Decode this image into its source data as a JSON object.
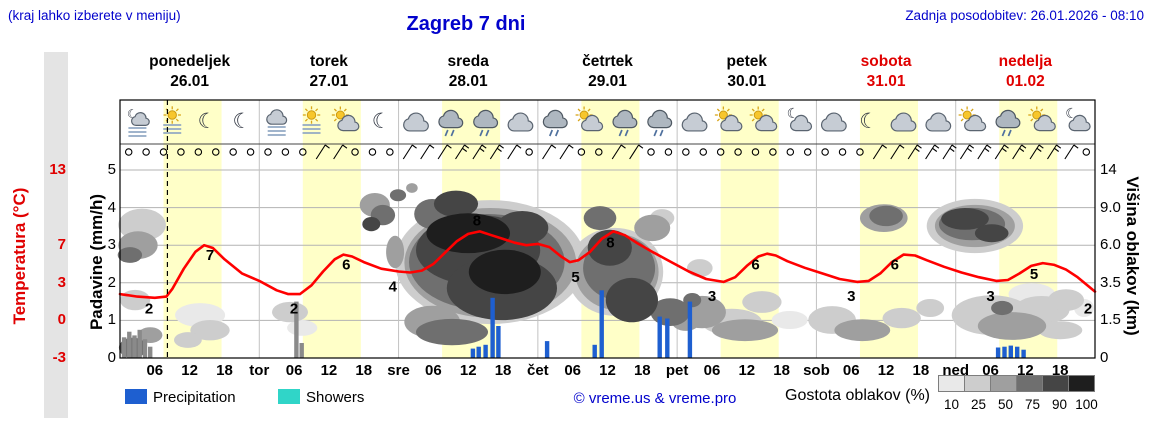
{
  "header": {
    "hint": "(kraj lahko izberete v meniju)",
    "title": "Zagreb 7 dni",
    "updated": "Zadnja posodobitev: 26.01.2026 - 08:10"
  },
  "days": [
    {
      "name": "ponedeljek",
      "date": "26.01",
      "weekend": false
    },
    {
      "name": "torek",
      "date": "27.01",
      "weekend": false
    },
    {
      "name": "sreda",
      "date": "28.01",
      "weekend": false
    },
    {
      "name": "četrtek",
      "date": "29.01",
      "weekend": false
    },
    {
      "name": "petek",
      "date": "30.01",
      "weekend": false
    },
    {
      "name": "sobota",
      "date": "31.01",
      "weekend": true
    },
    {
      "name": "nedelja",
      "date": "01.02",
      "weekend": true
    }
  ],
  "axes": {
    "temperature": {
      "title": "Temperatura (°C)",
      "ticks": [
        {
          "label": "13",
          "row": 0
        },
        {
          "label": "7",
          "row": 2
        },
        {
          "label": "3",
          "row": 3
        },
        {
          "label": "0",
          "row": 4
        },
        {
          "label": "-3",
          "row": 5
        }
      ]
    },
    "precipitation": {
      "title": "Padavine (mm/h)",
      "ticks": [
        {
          "label": "5",
          "row": 0
        },
        {
          "label": "4",
          "row": 1
        },
        {
          "label": "3",
          "row": 2
        },
        {
          "label": "2",
          "row": 3
        },
        {
          "label": "1",
          "row": 4
        },
        {
          "label": "0",
          "row": 5
        }
      ]
    },
    "cloud_height": {
      "title": "Višina oblakov (km)",
      "ticks": [
        {
          "label": "14",
          "row": 0
        },
        {
          "label": "9.0",
          "row": 1
        },
        {
          "label": "6.0",
          "row": 2
        },
        {
          "label": "3.5",
          "row": 3
        },
        {
          "label": "1.5",
          "row": 4
        },
        {
          "label": "0",
          "row": 5
        }
      ]
    },
    "x_ticks": [
      {
        "label": "06",
        "hour": 6
      },
      {
        "label": "12",
        "hour": 12
      },
      {
        "label": "18",
        "hour": 18
      },
      {
        "label": "tor",
        "hour": 24
      },
      {
        "label": "06",
        "hour": 30
      },
      {
        "label": "12",
        "hour": 36
      },
      {
        "label": "18",
        "hour": 42
      },
      {
        "label": "sre",
        "hour": 48
      },
      {
        "label": "06",
        "hour": 54
      },
      {
        "label": "12",
        "hour": 60
      },
      {
        "label": "18",
        "hour": 66
      },
      {
        "label": "čet",
        "hour": 72
      },
      {
        "label": "06",
        "hour": 78
      },
      {
        "label": "12",
        "hour": 84
      },
      {
        "label": "18",
        "hour": 90
      },
      {
        "label": "pet",
        "hour": 96
      },
      {
        "label": "06",
        "hour": 102
      },
      {
        "label": "12",
        "hour": 108
      },
      {
        "label": "18",
        "hour": 114
      },
      {
        "label": "sob",
        "hour": 120
      },
      {
        "label": "06",
        "hour": 126
      },
      {
        "label": "12",
        "hour": 132
      },
      {
        "label": "18",
        "hour": 138
      },
      {
        "label": "ned",
        "hour": 144
      },
      {
        "label": "06",
        "hour": 150
      },
      {
        "label": "12",
        "hour": 156
      },
      {
        "label": "18",
        "hour": 162
      }
    ]
  },
  "legend": {
    "precipitation": "Precipitation",
    "showers": "Showers",
    "credit": "© vreme.us & vreme.pro",
    "cloud_density_label": "Gostota oblakov (%)",
    "cloud_density_levels": [
      "10",
      "25",
      "50",
      "75",
      "90",
      "100"
    ]
  },
  "colors": {
    "link": "#0202cc",
    "temp_axis": "#e00000",
    "weekend": "#e00000",
    "curve": "#ff0000",
    "precip_bar": "#1e5fd0",
    "showers": "#30d5c8",
    "daylight": "#ffffc8",
    "past_bar": "#8a8a8a",
    "cloud_levels": {
      "10": "#e9e9e9",
      "25": "#cdcdcd",
      "50": "#9f9f9f",
      "75": "#6f6f6f",
      "90": "#454545",
      "100": "#1e1e1e"
    }
  },
  "chart_data": {
    "type": "line",
    "title": "Zagreb 7 dni",
    "x_axis": "hours from ponedeljek 00:00 (0-168)",
    "precipitation_axis_mm": [
      0,
      5
    ],
    "temperature_ticks_c": [
      13,
      7,
      3,
      0,
      -3
    ],
    "cloud_height_ticks_km": [
      "14",
      "9.0",
      "6.0",
      "3.5",
      "1.5",
      "0"
    ],
    "temp_scale_anchors": [
      [
        -3,
        5
      ],
      [
        0,
        4
      ],
      [
        3,
        3
      ],
      [
        7,
        2
      ],
      [
        13,
        0
      ]
    ],
    "current_time_hour": 8.17,
    "daylight_hours": {
      "start": 7.5,
      "end": 17.5
    },
    "temperature_c": {
      "hours": [
        0,
        3,
        6,
        8,
        9,
        11,
        13,
        14.5,
        16,
        18,
        21,
        24,
        27,
        29,
        31,
        33,
        35,
        37,
        38.5,
        40,
        42,
        45,
        48,
        50,
        52,
        54,
        56,
        58,
        60,
        62,
        64,
        66,
        68,
        70,
        72,
        74,
        76,
        77.5,
        79,
        81,
        83,
        85,
        87,
        89,
        92,
        95,
        98,
        101,
        104,
        106,
        108,
        110,
        111.5,
        113,
        115,
        118,
        121,
        124,
        127,
        129,
        131,
        133,
        135,
        137,
        139,
        142,
        145,
        148,
        151,
        153,
        155,
        157,
        159,
        161,
        163,
        165,
        168
      ],
      "values": [
        2.1,
        1.9,
        1.8,
        1.9,
        2.5,
        4.5,
        6.3,
        7.0,
        6.7,
        5.5,
        4.0,
        3.2,
        2.4,
        2.1,
        2.1,
        2.8,
        4.2,
        5.5,
        6.0,
        5.8,
        5.2,
        4.5,
        4.2,
        4.1,
        4.3,
        5.0,
        6.2,
        7.3,
        7.9,
        8.1,
        7.8,
        7.5,
        7.2,
        7.0,
        7.1,
        6.8,
        5.8,
        5.2,
        5.4,
        6.3,
        7.5,
        8.1,
        7.8,
        7.2,
        6.2,
        5.2,
        4.2,
        3.4,
        3.1,
        3.6,
        4.8,
        5.8,
        6.1,
        5.9,
        5.3,
        4.6,
        4.0,
        3.4,
        3.1,
        3.2,
        4.0,
        5.2,
        6.0,
        5.9,
        5.4,
        4.7,
        4.1,
        3.6,
        3.2,
        3.3,
        4.0,
        4.8,
        5.1,
        4.9,
        4.4,
        3.6,
        2.3
      ]
    },
    "temp_labels": [
      {
        "hour": 5,
        "value": "2",
        "pos": "min"
      },
      {
        "hour": 15.5,
        "value": "7",
        "pos": "max"
      },
      {
        "hour": 30,
        "value": "2",
        "pos": "min"
      },
      {
        "hour": 39,
        "value": "6",
        "pos": "max"
      },
      {
        "hour": 47,
        "value": "4",
        "pos": "min"
      },
      {
        "hour": 61.5,
        "value": "8",
        "pos": "top"
      },
      {
        "hour": 78.5,
        "value": "5",
        "pos": "min"
      },
      {
        "hour": 84.5,
        "value": "8",
        "pos": "max"
      },
      {
        "hour": 102,
        "value": "3",
        "pos": "min"
      },
      {
        "hour": 109.5,
        "value": "6",
        "pos": "max"
      },
      {
        "hour": 126,
        "value": "3",
        "pos": "min"
      },
      {
        "hour": 133.5,
        "value": "6",
        "pos": "max"
      },
      {
        "hour": 150,
        "value": "3",
        "pos": "min"
      },
      {
        "hour": 157.5,
        "value": "5",
        "pos": "max"
      },
      {
        "hour": 166.8,
        "value": "2",
        "pos": "min"
      }
    ],
    "precipitation_mm": [
      {
        "hour": 60.8,
        "mm": 0.25
      },
      {
        "hour": 61.8,
        "mm": 0.3
      },
      {
        "hour": 63,
        "mm": 0.35
      },
      {
        "hour": 64.2,
        "mm": 1.6
      },
      {
        "hour": 65.2,
        "mm": 0.85
      },
      {
        "hour": 73.6,
        "mm": 0.45
      },
      {
        "hour": 81.8,
        "mm": 0.35
      },
      {
        "hour": 83,
        "mm": 1.8
      },
      {
        "hour": 93,
        "mm": 1.1
      },
      {
        "hour": 94.3,
        "mm": 1.05
      },
      {
        "hour": 98.2,
        "mm": 1.5
      },
      {
        "hour": 151.3,
        "mm": 0.28
      },
      {
        "hour": 152.4,
        "mm": 0.3
      },
      {
        "hour": 153.5,
        "mm": 0.33
      },
      {
        "hour": 154.6,
        "mm": 0.3
      },
      {
        "hour": 155.7,
        "mm": 0.22
      }
    ],
    "past_precip_mm": [
      {
        "hour": 0.7,
        "mm": 0.55
      },
      {
        "hour": 1.6,
        "mm": 0.7
      },
      {
        "hour": 2.5,
        "mm": 0.6
      },
      {
        "hour": 3.4,
        "mm": 0.75
      },
      {
        "hour": 4.3,
        "mm": 0.5
      },
      {
        "hour": 5.2,
        "mm": 0.3
      },
      {
        "hour": 30.4,
        "mm": 1.5
      },
      {
        "hour": 31.3,
        "mm": 0.4
      }
    ],
    "clouds_format": "[center_hour, center_rows_above_bottom, radius_hours, radius_rows, density_pct]",
    "clouds": [
      [
        3.8,
        3.54,
        4.1,
        0.43,
        25
      ],
      [
        3.1,
        3.0,
        3.4,
        0.37,
        50
      ],
      [
        1.7,
        2.74,
        2.1,
        0.21,
        75
      ],
      [
        2.6,
        1.54,
        2.6,
        0.27,
        25
      ],
      [
        5.2,
        0.61,
        2.1,
        0.21,
        50
      ],
      [
        2.2,
        0.27,
        2.4,
        0.27,
        75
      ],
      [
        13.8,
        1.14,
        4.3,
        0.32,
        10
      ],
      [
        15.5,
        0.74,
        3.4,
        0.27,
        25
      ],
      [
        11.7,
        0.48,
        2.4,
        0.21,
        25
      ],
      [
        29.3,
        1.22,
        3.1,
        0.27,
        25
      ],
      [
        31.4,
        0.8,
        2.6,
        0.21,
        10
      ],
      [
        43.9,
        4.07,
        2.6,
        0.32,
        50
      ],
      [
        45.3,
        3.8,
        2.1,
        0.27,
        75
      ],
      [
        43.3,
        3.56,
        1.55,
        0.19,
        90
      ],
      [
        47.4,
        2.82,
        1.55,
        0.43,
        50
      ],
      [
        47.9,
        4.33,
        1.4,
        0.16,
        75
      ],
      [
        50.3,
        4.52,
        1.0,
        0.13,
        50
      ],
      [
        63.8,
        2.55,
        16.4,
        1.65,
        25
      ],
      [
        63.8,
        2.53,
        14.8,
        1.46,
        50
      ],
      [
        63.2,
        2.55,
        13.4,
        1.28,
        75
      ],
      [
        61.7,
        2.87,
        10.7,
        0.93,
        90
      ],
      [
        65.8,
        1.86,
        9.5,
        0.85,
        90
      ],
      [
        60.0,
        3.32,
        7.2,
        0.53,
        100
      ],
      [
        66.3,
        2.29,
        6.2,
        0.59,
        100
      ],
      [
        53.8,
        3.83,
        3.1,
        0.4,
        75
      ],
      [
        57.9,
        4.1,
        3.8,
        0.35,
        90
      ],
      [
        69.3,
        3.46,
        4.5,
        0.45,
        90
      ],
      [
        53.8,
        0.96,
        4.8,
        0.43,
        50
      ],
      [
        57.2,
        0.69,
        6.2,
        0.35,
        75
      ],
      [
        85.3,
        2.29,
        8.3,
        1.17,
        25
      ],
      [
        85.6,
        2.29,
        7.2,
        1.01,
        50
      ],
      [
        86.0,
        2.39,
        6.2,
        0.85,
        75
      ],
      [
        84.4,
        2.93,
        3.8,
        0.48,
        90
      ],
      [
        88.2,
        1.54,
        4.5,
        0.59,
        90
      ],
      [
        82.7,
        3.72,
        2.8,
        0.32,
        75
      ],
      [
        91.7,
        3.46,
        3.1,
        0.35,
        50
      ],
      [
        93.4,
        3.72,
        2.1,
        0.24,
        25
      ],
      [
        94.8,
        1.22,
        3.4,
        0.37,
        75
      ],
      [
        97.5,
        0.96,
        2.4,
        0.24,
        50
      ],
      [
        100.3,
        1.22,
        4.1,
        0.43,
        50
      ],
      [
        105.4,
        0.96,
        5.2,
        0.35,
        25
      ],
      [
        110.6,
        1.49,
        3.4,
        0.29,
        25
      ],
      [
        107.7,
        0.74,
        5.7,
        0.29,
        50
      ],
      [
        99.9,
        2.39,
        2.2,
        0.24,
        25
      ],
      [
        115.4,
        1.01,
        3.1,
        0.24,
        10
      ],
      [
        98.6,
        1.54,
        1.55,
        0.19,
        75
      ],
      [
        122.7,
        1.01,
        4.1,
        0.37,
        25
      ],
      [
        127.9,
        0.74,
        4.8,
        0.29,
        50
      ],
      [
        131.6,
        3.72,
        4.1,
        0.37,
        50
      ],
      [
        132.0,
        3.78,
        2.9,
        0.27,
        75
      ],
      [
        134.7,
        1.06,
        3.3,
        0.27,
        25
      ],
      [
        139.6,
        1.33,
        2.4,
        0.24,
        25
      ],
      [
        147.3,
        3.51,
        8.3,
        0.72,
        25
      ],
      [
        147.3,
        3.51,
        6.9,
        0.56,
        50
      ],
      [
        146.8,
        3.56,
        5.7,
        0.43,
        75
      ],
      [
        145.6,
        3.7,
        4.1,
        0.29,
        90
      ],
      [
        150.2,
        3.32,
        2.9,
        0.24,
        90
      ],
      [
        150.2,
        1.14,
        6.9,
        0.53,
        25
      ],
      [
        153.7,
        0.85,
        5.9,
        0.37,
        50
      ],
      [
        158.8,
        1.28,
        4.8,
        0.37,
        25
      ],
      [
        163.0,
        1.54,
        3.1,
        0.29,
        25
      ],
      [
        157.1,
        1.7,
        4.0,
        0.29,
        10
      ],
      [
        152.0,
        1.33,
        1.9,
        0.19,
        75
      ],
      [
        162.0,
        0.74,
        3.8,
        0.24,
        25
      ],
      [
        166.1,
        1.33,
        1.7,
        0.24,
        10
      ]
    ],
    "wind_3h": [
      "calm",
      "calm",
      "calm",
      "calm",
      "calm",
      "calm",
      "calm",
      "calm",
      "calm",
      "calm",
      "calm",
      "b1",
      "b1",
      "calm",
      "calm",
      "calm",
      "b1",
      "b1",
      "b1",
      "b2",
      "b2",
      "b2",
      "b1",
      "calm",
      "b1",
      "b1",
      "calm",
      "calm",
      "b1",
      "b1",
      "calm",
      "calm",
      "calm",
      "calm",
      "calm",
      "calm",
      "calm",
      "calm",
      "calm",
      "calm",
      "calm",
      "calm",
      "calm",
      "b1",
      "b1",
      "b2",
      "b2",
      "b2",
      "b2",
      "b2",
      "b2",
      "b2",
      "b2",
      "b2",
      "b1",
      "calm"
    ],
    "weather_icons_6h": [
      "fog-moon",
      "fog-sun",
      "moon",
      "moon",
      "fog-cloud",
      "fog-sun",
      "sun-cloud",
      "moon",
      "cloud",
      "cloud-rain",
      "cloud-rain",
      "cloud",
      "cloud-rain",
      "sun-cloud",
      "cloud-rain",
      "cloud-rain",
      "cloud",
      "sun-cloud",
      "sun-cloud",
      "moon-cloud",
      "cloud",
      "moon",
      "cloud",
      "cloud",
      "sun-cloud",
      "cloud-rain",
      "sun-cloud",
      "moon-cloud"
    ]
  }
}
